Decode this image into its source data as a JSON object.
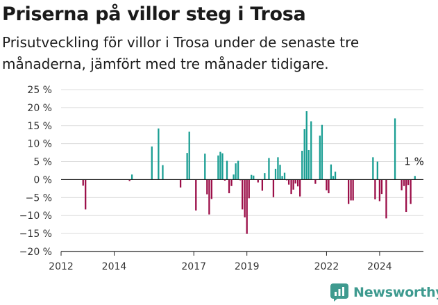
{
  "chart_data": {
    "type": "bar",
    "title": "Priserna på villor steg i Trosa",
    "subtitle": "Prisutveckling för villor i Trosa under de senaste tre månaderna, jämfört med tre månader tidigare.",
    "xlabel": "",
    "ylabel": "",
    "ylim": [
      -20,
      25
    ],
    "y_ticks": [
      25,
      20,
      15,
      10,
      5,
      0,
      -5,
      -10,
      -15,
      -20
    ],
    "y_tick_labels": [
      "25 %",
      "20 %",
      "15 %",
      "10 %",
      "5 %",
      "0 %",
      "−5 %",
      "−10 %",
      "−15 %",
      "−20 %"
    ],
    "x_range": [
      2012,
      2025.65
    ],
    "x_ticks": [
      2012,
      2014,
      2017,
      2019,
      2022,
      2024
    ],
    "x_tick_labels": [
      "2012",
      "2014",
      "2017",
      "2019",
      "2022",
      "2024"
    ],
    "grid": true,
    "positive_color": "#1a9e93",
    "negative_color": "#9b0e48",
    "annotation": {
      "text": "1 %",
      "x": 2025.3,
      "value": 1
    },
    "series": [
      {
        "name": "Prisutveckling",
        "points": [
          {
            "x": 2012.83,
            "v": -1.7
          },
          {
            "x": 2012.92,
            "v": -8.3
          },
          {
            "x": 2014.58,
            "v": -0.4
          },
          {
            "x": 2014.67,
            "v": 1.4
          },
          {
            "x": 2015.42,
            "v": 9.2
          },
          {
            "x": 2015.67,
            "v": 14.2
          },
          {
            "x": 2015.83,
            "v": 4.0
          },
          {
            "x": 2016.5,
            "v": -2.2
          },
          {
            "x": 2016.75,
            "v": 7.4
          },
          {
            "x": 2016.83,
            "v": 13.3
          },
          {
            "x": 2017.08,
            "v": -8.6
          },
          {
            "x": 2017.42,
            "v": 7.2
          },
          {
            "x": 2017.5,
            "v": -4.1
          },
          {
            "x": 2017.58,
            "v": -9.7
          },
          {
            "x": 2017.67,
            "v": -5.4
          },
          {
            "x": 2017.92,
            "v": 6.7
          },
          {
            "x": 2018.0,
            "v": 7.7
          },
          {
            "x": 2018.08,
            "v": 7.3
          },
          {
            "x": 2018.17,
            "v": -0.3
          },
          {
            "x": 2018.25,
            "v": 5.2
          },
          {
            "x": 2018.33,
            "v": -3.8
          },
          {
            "x": 2018.42,
            "v": -1.8
          },
          {
            "x": 2018.5,
            "v": 1.4
          },
          {
            "x": 2018.58,
            "v": 4.5
          },
          {
            "x": 2018.67,
            "v": 5.2
          },
          {
            "x": 2018.75,
            "v": -0.2
          },
          {
            "x": 2018.83,
            "v": -8.3
          },
          {
            "x": 2018.92,
            "v": -10.5
          },
          {
            "x": 2019.0,
            "v": -15.1
          },
          {
            "x": 2019.08,
            "v": -5.2
          },
          {
            "x": 2019.17,
            "v": 1.3
          },
          {
            "x": 2019.25,
            "v": 1.1
          },
          {
            "x": 2019.42,
            "v": -0.8
          },
          {
            "x": 2019.58,
            "v": -3.1
          },
          {
            "x": 2019.67,
            "v": 1.8
          },
          {
            "x": 2019.83,
            "v": 6.0
          },
          {
            "x": 2020.0,
            "v": -4.9
          },
          {
            "x": 2020.08,
            "v": 3.0
          },
          {
            "x": 2020.17,
            "v": 6.2
          },
          {
            "x": 2020.25,
            "v": 4.1
          },
          {
            "x": 2020.33,
            "v": 1.0
          },
          {
            "x": 2020.42,
            "v": 1.9
          },
          {
            "x": 2020.5,
            "v": -0.2
          },
          {
            "x": 2020.58,
            "v": -1.4
          },
          {
            "x": 2020.67,
            "v": -4.0
          },
          {
            "x": 2020.75,
            "v": -2.8
          },
          {
            "x": 2020.83,
            "v": -1.1
          },
          {
            "x": 2020.92,
            "v": -1.9
          },
          {
            "x": 2021.0,
            "v": -4.7
          },
          {
            "x": 2021.08,
            "v": 8.0
          },
          {
            "x": 2021.17,
            "v": 14.0
          },
          {
            "x": 2021.25,
            "v": 19.0
          },
          {
            "x": 2021.33,
            "v": 8.2
          },
          {
            "x": 2021.42,
            "v": 16.2
          },
          {
            "x": 2021.58,
            "v": -1.2
          },
          {
            "x": 2021.75,
            "v": 12.2
          },
          {
            "x": 2021.83,
            "v": 15.2
          },
          {
            "x": 2022.0,
            "v": -3.0
          },
          {
            "x": 2022.08,
            "v": -3.8
          },
          {
            "x": 2022.17,
            "v": 4.2
          },
          {
            "x": 2022.25,
            "v": 1.0
          },
          {
            "x": 2022.33,
            "v": 2.2
          },
          {
            "x": 2022.83,
            "v": -6.8
          },
          {
            "x": 2022.92,
            "v": -5.8
          },
          {
            "x": 2023.0,
            "v": -5.8
          },
          {
            "x": 2023.75,
            "v": 6.2
          },
          {
            "x": 2023.83,
            "v": -5.5
          },
          {
            "x": 2023.92,
            "v": 5.0
          },
          {
            "x": 2024.0,
            "v": -6.0
          },
          {
            "x": 2024.08,
            "v": -4.0
          },
          {
            "x": 2024.25,
            "v": -10.8
          },
          {
            "x": 2024.58,
            "v": 17.0
          },
          {
            "x": 2024.83,
            "v": -3.0
          },
          {
            "x": 2024.92,
            "v": -1.8
          },
          {
            "x": 2025.0,
            "v": -9.0
          },
          {
            "x": 2025.08,
            "v": -1.5
          },
          {
            "x": 2025.17,
            "v": -6.8
          },
          {
            "x": 2025.33,
            "v": 1.0
          }
        ]
      }
    ]
  },
  "branding": {
    "logo_text": "Newsworthy"
  }
}
